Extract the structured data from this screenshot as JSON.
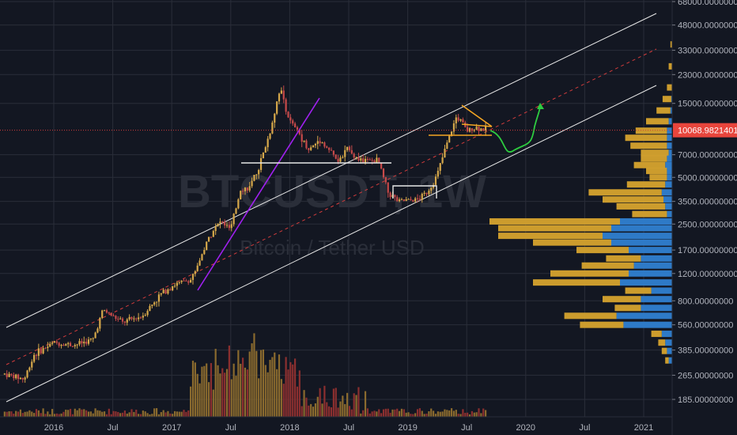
{
  "watermark": {
    "symbol": "BTCUSDT, 1W",
    "description": "Bitcoin / Tether USD"
  },
  "colors": {
    "background": "#131722",
    "grid": "#2a2e39",
    "axis_text": "#b2b5be",
    "up": "#d6a84a",
    "down": "#c74a4a",
    "vol_up": "#8a6a2e",
    "vol_down": "#8b2f2f",
    "channel": "#e8e8e8",
    "midline": "#d23c3c",
    "price_line": "#d23c3c",
    "price_tag": "#e8453c",
    "purple": "#a020f0",
    "orange": "#f5a623",
    "green": "#2ecc40",
    "vp_up": "#d6a32e",
    "vp_down": "#2f7fd1"
  },
  "chart_data": {
    "type": "candlestick",
    "y_scale": "log",
    "ylim": [
      160,
      68000
    ],
    "xlim": [
      "2015-08",
      "2021-02"
    ],
    "x_tick_labels": [
      "2016",
      "Jul",
      "2017",
      "Jul",
      "2018",
      "Jul",
      "2019",
      "Jul",
      "2020",
      "Jul",
      "2021"
    ],
    "x_tick_dates": [
      "2016-01",
      "2016-07",
      "2017-01",
      "2017-07",
      "2018-01",
      "2018-07",
      "2019-01",
      "2019-07",
      "2020-01",
      "2020-07",
      "2021-01"
    ],
    "y_tick_labels": [
      "68000.00000000",
      "48000.00000000",
      "33000.00000000",
      "23000.00000000",
      "15000.00000000",
      "7000.00000000",
      "5000.00000000",
      "3500.00000000",
      "2500.00000000",
      "1700.00000000",
      "1200.00000000",
      "800.00000000",
      "560.00000000",
      "385.00000000",
      "265.00000000",
      "185.00000000"
    ],
    "y_tick_values": [
      68000,
      48000,
      33000,
      23000,
      15000,
      7000,
      5000,
      3500,
      2500,
      1700,
      1200,
      800,
      560,
      385,
      265,
      185
    ],
    "last_price": 10068.98214015,
    "last_price_label": "10068.98214015",
    "price_path": [
      [
        "2015-08",
        270
      ],
      [
        "2015-10",
        250
      ],
      [
        "2015-11",
        360
      ],
      [
        "2016-01",
        430
      ],
      [
        "2016-03",
        415
      ],
      [
        "2016-05",
        450
      ],
      [
        "2016-06",
        700
      ],
      [
        "2016-08",
        580
      ],
      [
        "2016-10",
        640
      ],
      [
        "2016-12",
        900
      ],
      [
        "2017-01",
        1000
      ],
      [
        "2017-03",
        1100
      ],
      [
        "2017-05",
        2200
      ],
      [
        "2017-06",
        2600
      ],
      [
        "2017-07",
        2300
      ],
      [
        "2017-08",
        4200
      ],
      [
        "2017-09",
        4300
      ],
      [
        "2017-10",
        6200
      ],
      [
        "2017-11",
        9800
      ],
      [
        "2017-12",
        19000
      ],
      [
        "2018-01",
        11500
      ],
      [
        "2018-02",
        9500
      ],
      [
        "2018-03",
        7500
      ],
      [
        "2018-04",
        8800
      ],
      [
        "2018-05",
        7500
      ],
      [
        "2018-06",
        6300
      ],
      [
        "2018-07",
        7800
      ],
      [
        "2018-08",
        6400
      ],
      [
        "2018-10",
        6400
      ],
      [
        "2018-11",
        4000
      ],
      [
        "2018-12",
        3500
      ],
      [
        "2019-02",
        3600
      ],
      [
        "2019-03",
        4000
      ],
      [
        "2019-04",
        5200
      ],
      [
        "2019-05",
        8300
      ],
      [
        "2019-06",
        12500
      ],
      [
        "2019-07",
        10000
      ],
      [
        "2019-08",
        10500
      ],
      [
        "2019-09",
        10068
      ]
    ],
    "volume_profile": [
      {
        "price": 36000,
        "up": 0.1,
        "down": 0.0
      },
      {
        "price": 26000,
        "up": 0.2,
        "down": 0.0
      },
      {
        "price": 19000,
        "up": 0.3,
        "down": 0.0
      },
      {
        "price": 16000,
        "up": 0.5,
        "down": 0.05
      },
      {
        "price": 13500,
        "up": 0.8,
        "down": 0.1
      },
      {
        "price": 11500,
        "up": 1.3,
        "down": 0.2
      },
      {
        "price": 10000,
        "up": 1.8,
        "down": 0.3
      },
      {
        "price": 9000,
        "up": 2.4,
        "down": 0.3
      },
      {
        "price": 8000,
        "up": 2.1,
        "down": 0.3
      },
      {
        "price": 7200,
        "up": 1.6,
        "down": 0.2
      },
      {
        "price": 6600,
        "up": 1.5,
        "down": 0.3
      },
      {
        "price": 6000,
        "up": 1.8,
        "down": 0.4
      },
      {
        "price": 5500,
        "up": 1.2,
        "down": 0.3
      },
      {
        "price": 5000,
        "up": 1.0,
        "down": 0.3
      },
      {
        "price": 4500,
        "up": 2.2,
        "down": 0.4
      },
      {
        "price": 4000,
        "up": 4.2,
        "down": 0.6
      },
      {
        "price": 3600,
        "up": 3.5,
        "down": 0.5
      },
      {
        "price": 3250,
        "up": 2.8,
        "down": 0.4
      },
      {
        "price": 2900,
        "up": 2.0,
        "down": 0.3
      },
      {
        "price": 2600,
        "up": 7.5,
        "down": 3.0
      },
      {
        "price": 2350,
        "up": 6.5,
        "down": 3.5
      },
      {
        "price": 2100,
        "up": 6.0,
        "down": 4.0
      },
      {
        "price": 1900,
        "up": 4.5,
        "down": 3.5
      },
      {
        "price": 1700,
        "up": 3.0,
        "down": 2.5
      },
      {
        "price": 1500,
        "up": 2.0,
        "down": 1.8
      },
      {
        "price": 1350,
        "up": 3.0,
        "down": 2.2
      },
      {
        "price": 1200,
        "up": 4.5,
        "down": 2.5
      },
      {
        "price": 1050,
        "up": 5.0,
        "down": 3.0
      },
      {
        "price": 930,
        "up": 1.5,
        "down": 1.2
      },
      {
        "price": 820,
        "up": 2.2,
        "down": 1.8
      },
      {
        "price": 720,
        "up": 1.5,
        "down": 1.8
      },
      {
        "price": 640,
        "up": 3.0,
        "down": 3.2
      },
      {
        "price": 560,
        "up": 2.5,
        "down": 2.8
      },
      {
        "price": 490,
        "up": 0.6,
        "down": 0.6
      },
      {
        "price": 430,
        "up": 0.4,
        "down": 0.4
      },
      {
        "price": 380,
        "up": 0.3,
        "down": 0.3
      },
      {
        "price": 330,
        "up": 0.2,
        "down": 0.2
      }
    ]
  }
}
